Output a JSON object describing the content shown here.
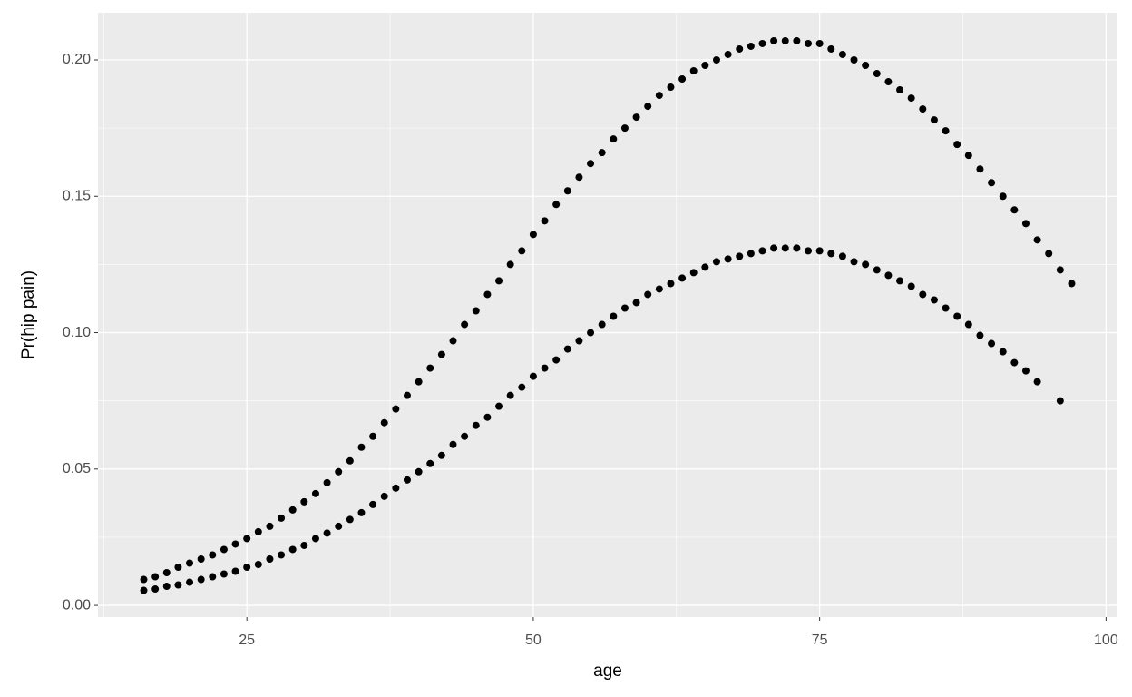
{
  "chart_data": {
    "type": "scatter",
    "x_label": "age",
    "y_label": "Pr(hip pain)",
    "xlim": [
      12,
      101
    ],
    "ylim": [
      -0.0043,
      0.2173
    ],
    "xticks": [
      25,
      50,
      75,
      100
    ],
    "yticks": [
      {
        "value": 0,
        "label": "0.00"
      },
      {
        "value": 0.05,
        "label": "0.05"
      },
      {
        "value": 0.1,
        "label": "0.10"
      },
      {
        "value": 0.15,
        "label": "0.15"
      },
      {
        "value": 0.2,
        "label": "0.20"
      }
    ],
    "x_minor_ticks": [
      12.5,
      37.5,
      62.5,
      87.5
    ],
    "y_minor_ticks": [
      0.025,
      0.075,
      0.125,
      0.175
    ],
    "grid": true,
    "series": [
      {
        "color": "#000000",
        "x": [
          16,
          17,
          18,
          19,
          20,
          21,
          22,
          23,
          24,
          25,
          26,
          27,
          28,
          29,
          30,
          31,
          32,
          33,
          34,
          35,
          36,
          37,
          38,
          39,
          40,
          41,
          42,
          43,
          44,
          45,
          46,
          47,
          48,
          49,
          50,
          51,
          52,
          53,
          54,
          55,
          56,
          57,
          58,
          59,
          60,
          61,
          62,
          63,
          64,
          65,
          66,
          67,
          68,
          69,
          70,
          71,
          72,
          73,
          74,
          75,
          76,
          77,
          78,
          79,
          80,
          81,
          82,
          83,
          84,
          85,
          86,
          87,
          88,
          89,
          90,
          91,
          92,
          93,
          94,
          95,
          96,
          97
        ],
        "values": [
          0.0095,
          0.0105,
          0.012,
          0.014,
          0.0155,
          0.017,
          0.0185,
          0.0205,
          0.0225,
          0.0245,
          0.027,
          0.029,
          0.032,
          0.035,
          0.038,
          0.041,
          0.045,
          0.049,
          0.053,
          0.058,
          0.062,
          0.067,
          0.072,
          0.077,
          0.082,
          0.087,
          0.092,
          0.097,
          0.103,
          0.108,
          0.114,
          0.119,
          0.125,
          0.13,
          0.136,
          0.141,
          0.147,
          0.152,
          0.157,
          0.162,
          0.166,
          0.171,
          0.175,
          0.179,
          0.183,
          0.187,
          0.19,
          0.193,
          0.196,
          0.198,
          0.2,
          0.202,
          0.204,
          0.205,
          0.206,
          0.207,
          0.207,
          0.207,
          0.206,
          0.206,
          0.204,
          0.202,
          0.2,
          0.198,
          0.195,
          0.192,
          0.189,
          0.186,
          0.182,
          0.178,
          0.174,
          0.169,
          0.165,
          0.16,
          0.155,
          0.15,
          0.145,
          0.14,
          0.134,
          0.129,
          0.123,
          0.118
        ]
      },
      {
        "color": "#000000",
        "x": [
          16,
          17,
          18,
          19,
          20,
          21,
          22,
          23,
          24,
          25,
          26,
          27,
          28,
          29,
          30,
          31,
          32,
          33,
          34,
          35,
          36,
          37,
          38,
          39,
          40,
          41,
          42,
          43,
          44,
          45,
          46,
          47,
          48,
          49,
          50,
          51,
          52,
          53,
          54,
          55,
          56,
          57,
          58,
          59,
          60,
          61,
          62,
          63,
          64,
          65,
          66,
          67,
          68,
          69,
          70,
          71,
          72,
          73,
          74,
          75,
          76,
          77,
          78,
          79,
          80,
          81,
          82,
          83,
          84,
          85,
          86,
          87,
          88,
          89,
          90,
          91,
          92,
          93,
          94,
          96
        ],
        "values": [
          0.0055,
          0.006,
          0.007,
          0.0075,
          0.0085,
          0.0095,
          0.0105,
          0.0115,
          0.0125,
          0.014,
          0.015,
          0.017,
          0.0185,
          0.0205,
          0.022,
          0.0245,
          0.0265,
          0.029,
          0.0315,
          0.034,
          0.037,
          0.04,
          0.043,
          0.046,
          0.049,
          0.052,
          0.055,
          0.059,
          0.062,
          0.066,
          0.069,
          0.073,
          0.077,
          0.08,
          0.084,
          0.087,
          0.09,
          0.094,
          0.097,
          0.1,
          0.103,
          0.106,
          0.109,
          0.111,
          0.114,
          0.116,
          0.118,
          0.12,
          0.122,
          0.124,
          0.126,
          0.127,
          0.128,
          0.129,
          0.13,
          0.131,
          0.131,
          0.131,
          0.13,
          0.13,
          0.129,
          0.128,
          0.126,
          0.125,
          0.123,
          0.121,
          0.119,
          0.117,
          0.114,
          0.112,
          0.109,
          0.106,
          0.103,
          0.099,
          0.096,
          0.093,
          0.089,
          0.086,
          0.082,
          0.075
        ]
      }
    ]
  }
}
